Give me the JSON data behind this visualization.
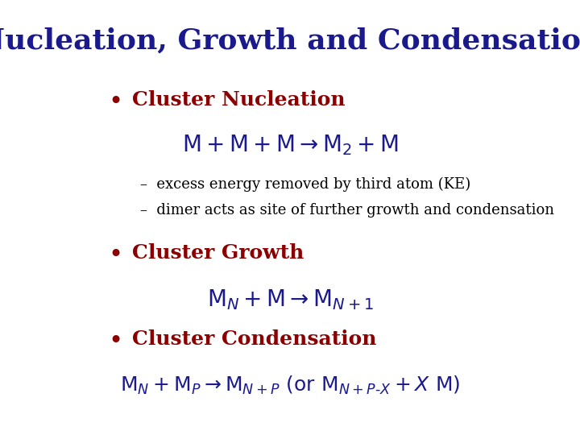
{
  "title": "Nucleation, Growth and Condensation",
  "title_color": "#1a1a8c",
  "title_fontsize": 26,
  "title_bold": true,
  "bg_color": "#ffffff",
  "bullet_color": "#8b0000",
  "bullet_fontsize": 18,
  "formula_color": "#1a1a8c",
  "formula_fontsize": 18,
  "dash_color": "#000000",
  "dash_fontsize": 13,
  "bullet1": "Cluster Nucleation",
  "bullet2": "Cluster Growth",
  "bullet3": "Cluster Condensation",
  "dash1": "excess energy removed by third atom (KE)",
  "dash2": "dimer acts as site of further growth and condensation"
}
